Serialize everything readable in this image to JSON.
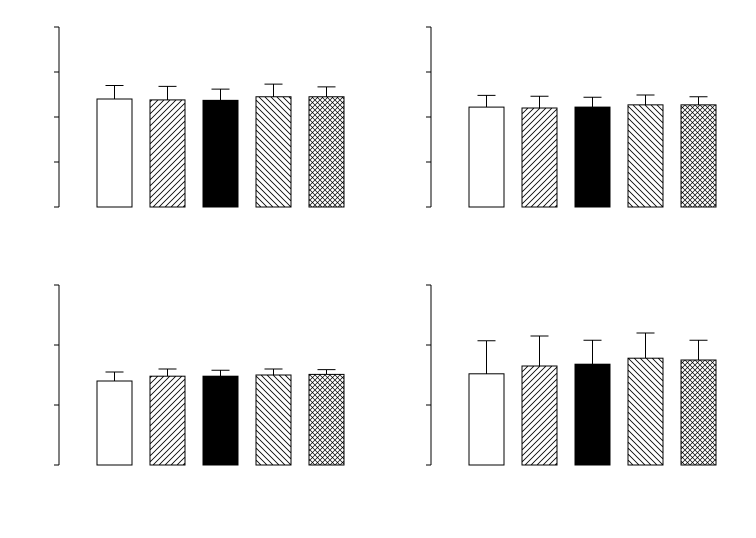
{
  "chart_data": [
    {
      "type": "bar",
      "title": "",
      "xlabel": "",
      "ylabel": "",
      "ylim": [
        0,
        4
      ],
      "yticks": [
        0,
        1,
        2,
        3,
        4
      ],
      "tick_labels_shown": false,
      "grid": false,
      "legend": "none",
      "series": [
        {
          "values": [
            2.4,
            2.38,
            2.37,
            2.45,
            2.45
          ],
          "errors": [
            0.3,
            0.3,
            0.25,
            0.28,
            0.22
          ],
          "patterns": [
            "white",
            "hatch-forward",
            "black",
            "hatch-back",
            "crosshatch"
          ]
        }
      ]
    },
    {
      "type": "bar",
      "title": "",
      "xlabel": "",
      "ylabel": "",
      "ylim": [
        0,
        4
      ],
      "yticks": [
        0,
        1,
        2,
        3,
        4
      ],
      "tick_labels_shown": false,
      "grid": false,
      "legend": "none",
      "series": [
        {
          "values": [
            2.22,
            2.2,
            2.22,
            2.27,
            2.27
          ],
          "errors": [
            0.26,
            0.26,
            0.22,
            0.22,
            0.18
          ],
          "patterns": [
            "white",
            "hatch-forward",
            "black",
            "hatch-back",
            "crosshatch"
          ]
        }
      ]
    },
    {
      "type": "bar",
      "title": "",
      "xlabel": "",
      "ylabel": "",
      "ylim": [
        0,
        3
      ],
      "yticks": [
        0,
        1,
        2,
        3
      ],
      "tick_labels_shown": false,
      "grid": false,
      "legend": "none",
      "series": [
        {
          "values": [
            1.4,
            1.48,
            1.48,
            1.5,
            1.51
          ],
          "errors": [
            0.15,
            0.12,
            0.1,
            0.1,
            0.08
          ],
          "patterns": [
            "white",
            "hatch-forward",
            "black",
            "hatch-back",
            "crosshatch"
          ]
        }
      ]
    },
    {
      "type": "bar",
      "title": "",
      "xlabel": "",
      "ylabel": "",
      "ylim": [
        0,
        3
      ],
      "yticks": [
        0,
        1,
        2,
        3
      ],
      "tick_labels_shown": false,
      "grid": false,
      "legend": "none",
      "series": [
        {
          "values": [
            1.52,
            1.65,
            1.68,
            1.78,
            1.75
          ],
          "errors": [
            0.55,
            0.5,
            0.4,
            0.42,
            0.33
          ],
          "patterns": [
            "white",
            "hatch-forward",
            "black",
            "hatch-back",
            "crosshatch"
          ]
        }
      ]
    }
  ]
}
